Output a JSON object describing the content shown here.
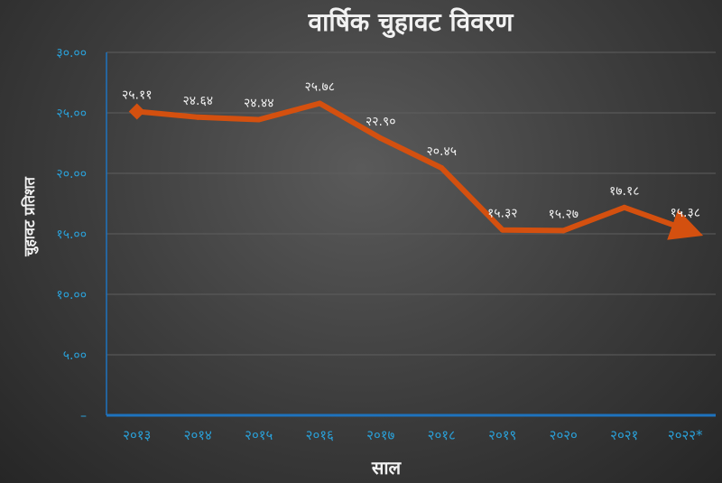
{
  "chart_data": {
    "type": "line",
    "title": "वार्षिक चुहावट विवरण",
    "xlabel": "साल",
    "ylabel": "चुहावट प्रतिशत",
    "categories": [
      "२०१३",
      "२०१४",
      "२०१५",
      "२०१६",
      "२०१७",
      "२०१८",
      "२०१९",
      "२०२०",
      "२०२१",
      "२०२२*"
    ],
    "series": [
      {
        "values": [
          25.11,
          24.64,
          24.44,
          25.78,
          22.9,
          20.45,
          15.32,
          15.27,
          17.18,
          15.38
        ],
        "labels": [
          "२५.११",
          "२४.६४",
          "२४.४४",
          "२५.७८",
          "२२.९०",
          "२०.४५",
          "१५.३२",
          "१५.२७",
          "१७.१८",
          "१५.३८"
        ]
      }
    ],
    "yticks": [
      "–",
      "५.००",
      "१०.००",
      "१५.००",
      "२०.००",
      "२५.००",
      "३०.००"
    ],
    "ylim": [
      0,
      30
    ],
    "grid": true,
    "colors": {
      "line": "#d4500f",
      "tick": "#2aa0d8",
      "axis": "#1e73be",
      "grid": "#5e5e5e",
      "text": "#f2f2f2"
    }
  }
}
